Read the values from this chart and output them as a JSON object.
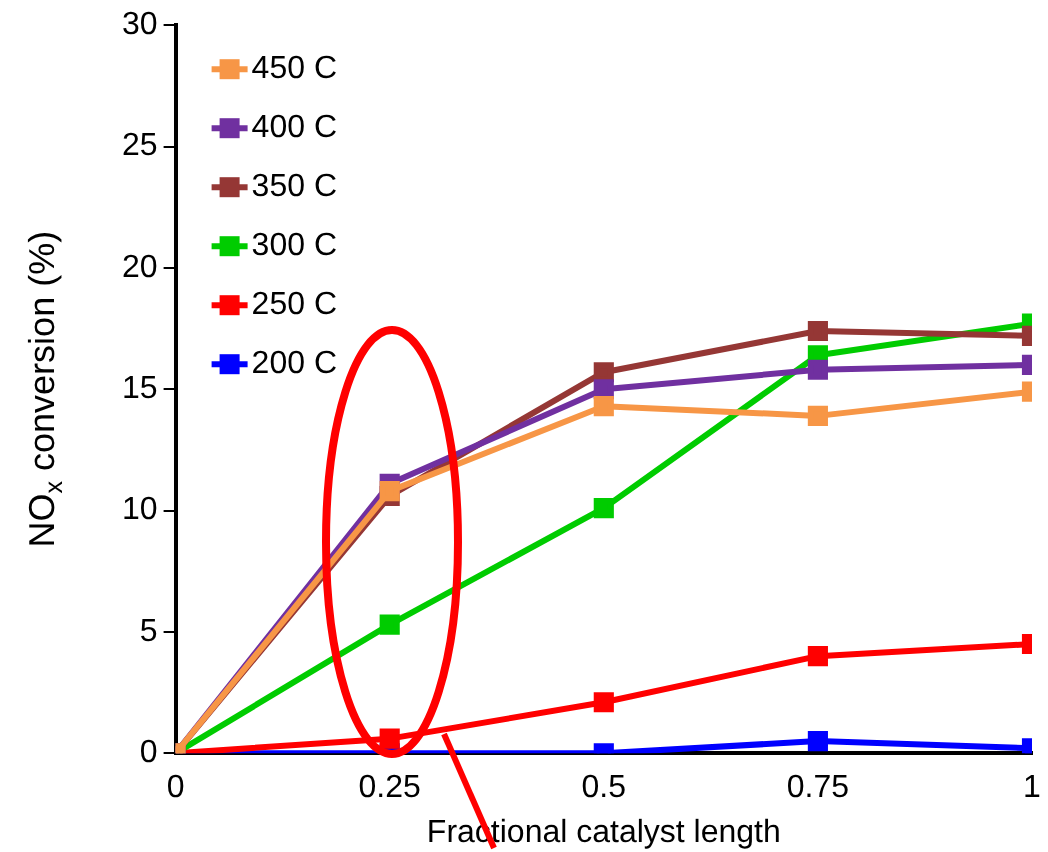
{
  "chart_data": {
    "type": "line",
    "xlabel": "Fractional catalyst length",
    "ylabel": "NO$_{x}$ conversion (%)",
    "x": [
      0,
      0.25,
      0.5,
      0.75,
      1
    ],
    "series": [
      {
        "name": "450 C",
        "color": "#f79646",
        "values": [
          0,
          10.8,
          14.3,
          13.9,
          14.9
        ]
      },
      {
        "name": "400 C",
        "color": "#7030a0",
        "values": [
          0,
          11.1,
          15.0,
          15.8,
          16.0
        ]
      },
      {
        "name": "350 C",
        "color": "#953735",
        "values": [
          0,
          10.6,
          15.7,
          17.4,
          17.2
        ]
      },
      {
        "name": "300 C",
        "color": "#00cc00",
        "values": [
          0,
          5.3,
          10.1,
          16.4,
          17.7
        ]
      },
      {
        "name": "250 C",
        "color": "#ff0000",
        "values": [
          0,
          0.6,
          2.1,
          4.0,
          4.5
        ]
      },
      {
        "name": "200 C",
        "color": "#0000ff",
        "values": [
          0,
          0,
          0,
          0.5,
          0.2
        ]
      }
    ],
    "xlim": [
      0,
      1
    ],
    "xticks": [
      0,
      0.25,
      0.5,
      0.75,
      1
    ],
    "ylim": [
      0,
      30
    ],
    "yticks": [
      0,
      5,
      10,
      15,
      20,
      25,
      30
    ],
    "grid": false,
    "legend": "top left",
    "marker": "square",
    "line_style": "solid"
  }
}
